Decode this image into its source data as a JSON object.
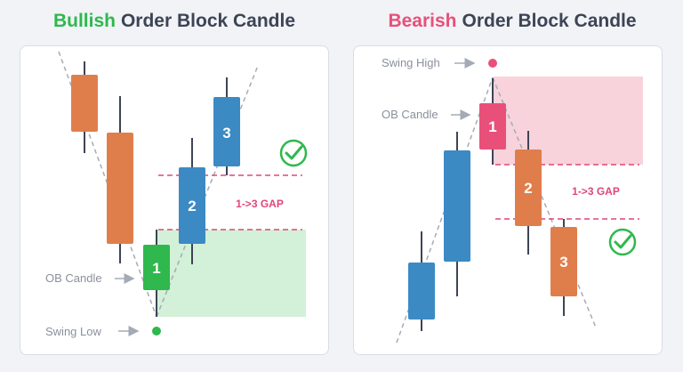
{
  "bullish": {
    "title_accent": "Bullish",
    "title_rest": "Order Block Candle",
    "accent_color": "#2fb84d",
    "labels": {
      "ob_candle": "OB Candle",
      "swing_low": "Swing Low",
      "gap": "1->3 GAP",
      "candle_1": "1",
      "candle_2": "2",
      "candle_3": "3"
    },
    "icon": "check-circle-icon"
  },
  "bearish": {
    "title_accent": "Bearish",
    "title_rest": "Order Block Candle",
    "accent_color": "#e8507a",
    "labels": {
      "swing_high": "Swing High",
      "ob_candle": "OB Candle",
      "gap": "1->3 GAP",
      "candle_1": "1",
      "candle_2": "2",
      "candle_3": "3"
    },
    "icon": "check-circle-icon"
  },
  "colors": {
    "orange_candle": "#e07e4b",
    "blue_candle": "#3b8ac4",
    "green_candle": "#2fb84d",
    "pink_candle": "#e8507a",
    "green_zone": "#d3f0d8",
    "pink_zone": "#f8d3dc",
    "gap_line": "#e0457a",
    "label_text": "#8a909c"
  }
}
